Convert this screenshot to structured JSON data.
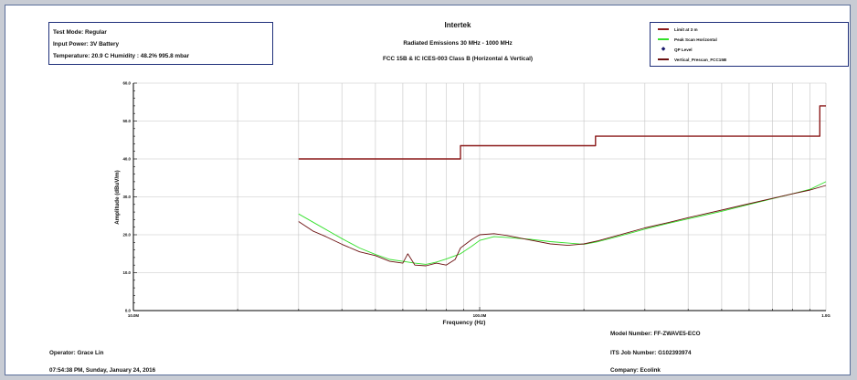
{
  "header": {
    "test_mode": "Test Mode: Regular",
    "input_power": "Input Power: 3V Battery",
    "conditions": "Temperature: 20.9 C Humidity : 48.2% 995.8 mbar",
    "company_title": "Intertek",
    "subtitle": "Radiated Emissions 30 MHz - 1000 MHz",
    "standard": "FCC 15B & IC ICES-003 Class B (Horizontal & Vertical)"
  },
  "footer": {
    "model_number": "Model Number: FF-ZWAVE5-ECO",
    "operator": "Operator: Grace Lin",
    "job_number": "ITS Job Number: G102393974",
    "timestamp": "07:54:38 PM, Sunday, January 24, 2016",
    "company": "Company: Ecolink"
  },
  "colors": {
    "limit": "#8b1a1a",
    "peak_scan_horizontal": "#33e02a",
    "qp_level": "#1a1a6e",
    "vertical_prescan": "#6b1010",
    "grid": "#c4c4c4",
    "axis": "#000000"
  },
  "chart_data": {
    "type": "line",
    "xscale": "log",
    "xlabel": "Frequency (Hz)",
    "ylabel": "Amplitude (dBuV/m)",
    "xlim": [
      10000000,
      1000000000
    ],
    "ylim": [
      0,
      60
    ],
    "x_tick_labels": [
      {
        "value": 10000000,
        "label": "10.0M"
      },
      {
        "value": 100000000,
        "label": "100.0M"
      },
      {
        "value": 1000000000,
        "label": "1.0G"
      }
    ],
    "y_tick_labels": [
      "0.0",
      "10.0",
      "20.0",
      "30.0",
      "40.0",
      "50.0",
      "60.0"
    ],
    "grid": true,
    "legend_position": "top-right",
    "series": [
      {
        "name": "Limit at 3 m",
        "kind": "step",
        "x": [
          30000000,
          88000000,
          88000000,
          216000000,
          216000000,
          960000000,
          960000000,
          1000000000
        ],
        "y": [
          40,
          40,
          43.5,
          43.5,
          46,
          46,
          54,
          54
        ]
      },
      {
        "name": "Peak Scan Horizontal",
        "kind": "line",
        "x": [
          30000000,
          35000000,
          40000000,
          45000000,
          50000000,
          55000000,
          60000000,
          65000000,
          70000000,
          75000000,
          80000000,
          88000000,
          95000000,
          100000000,
          110000000,
          120000000,
          140000000,
          160000000,
          180000000,
          200000000,
          220000000,
          250000000,
          300000000,
          350000000,
          400000000,
          500000000,
          600000000,
          700000000,
          800000000,
          900000000,
          1000000000
        ],
        "y": [
          25.5,
          22,
          19,
          16.5,
          14.8,
          13.5,
          13,
          12.5,
          12.2,
          12.8,
          13.6,
          15,
          17,
          18.5,
          19.5,
          19.3,
          18.8,
          18.2,
          17.8,
          17.5,
          18.2,
          19.5,
          21.5,
          23,
          24.2,
          26.2,
          28,
          29.5,
          30.8,
          32,
          34
        ]
      },
      {
        "name": "QP Level",
        "kind": "marker",
        "x": [],
        "y": []
      },
      {
        "name": "Vertical_Prescan_FCC15B",
        "kind": "line",
        "x": [
          30000000,
          33000000,
          36000000,
          40000000,
          45000000,
          50000000,
          55000000,
          60000000,
          62000000,
          65000000,
          70000000,
          75000000,
          80000000,
          85000000,
          88000000,
          95000000,
          100000000,
          110000000,
          120000000,
          140000000,
          160000000,
          180000000,
          200000000,
          220000000,
          250000000,
          300000000,
          350000000,
          400000000,
          500000000,
          600000000,
          700000000,
          800000000,
          900000000,
          1000000000
        ],
        "y": [
          23.5,
          21,
          19.5,
          17.5,
          15.5,
          14.5,
          13,
          12.5,
          15,
          12,
          11.8,
          12.5,
          12,
          13.5,
          16.5,
          18.8,
          20,
          20.3,
          19.8,
          18.6,
          17.6,
          17.2,
          17.6,
          18.4,
          19.8,
          21.8,
          23.2,
          24.5,
          26.5,
          28.2,
          29.6,
          30.8,
          31.8,
          33
        ]
      }
    ]
  }
}
